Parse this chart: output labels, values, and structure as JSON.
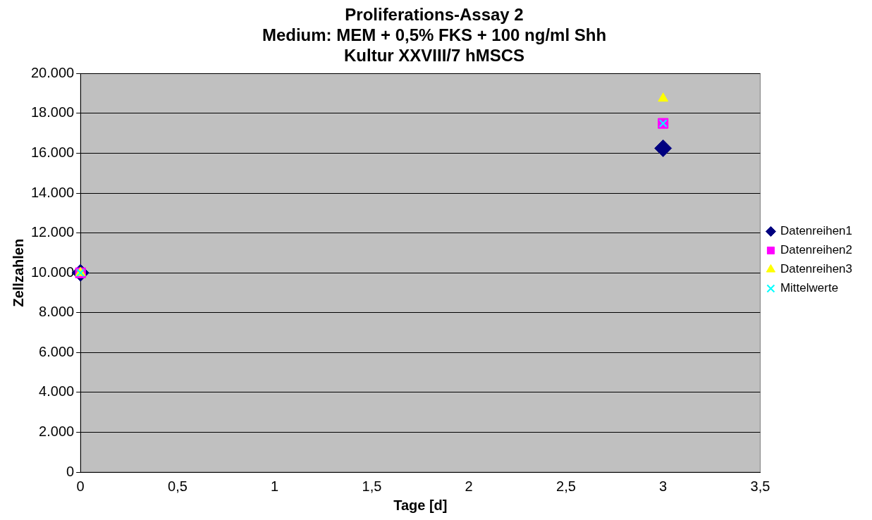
{
  "chart_data": {
    "type": "scatter",
    "title": "Proliferations-Assay 2\nMedium: MEM + 0,5% FKS + 100 ng/ml Shh\nKultur XXVIII/7 hMSCS",
    "xlabel": "Tage [d]",
    "ylabel": "Zellzahlen",
    "x": [
      0,
      3
    ],
    "series": [
      {
        "name": "Datenreihen1",
        "color": "#000080",
        "marker": "diamond",
        "values": [
          10000,
          16250
        ]
      },
      {
        "name": "Datenreihen2",
        "color": "#ff00ff",
        "marker": "square",
        "values": [
          10000,
          17500
        ]
      },
      {
        "name": "Datenreihen3",
        "color": "#ffff00",
        "marker": "triangle",
        "values": [
          10000,
          18750
        ]
      },
      {
        "name": "Mittelwerte",
        "color": "#00ffff",
        "marker": "cross",
        "values": [
          10000,
          17500
        ]
      }
    ],
    "xlim": [
      0,
      3.5
    ],
    "xticks": [
      0,
      {
        "value": 0.5,
        "label": "0,5"
      },
      1,
      {
        "value": 1.5,
        "label": "1,5"
      },
      2,
      {
        "value": 2.5,
        "label": "2,5"
      },
      3,
      {
        "value": 3.5,
        "label": "3,5"
      }
    ],
    "ylim": [
      0,
      20000
    ],
    "yticks": [
      0,
      {
        "value": 2000,
        "label": "2.000"
      },
      {
        "value": 4000,
        "label": "4.000"
      },
      {
        "value": 6000,
        "label": "6.000"
      },
      {
        "value": 8000,
        "label": "8.000"
      },
      {
        "value": 10000,
        "label": "10.000"
      },
      {
        "value": 12000,
        "label": "12.000"
      },
      {
        "value": 14000,
        "label": "14.000"
      },
      {
        "value": 16000,
        "label": "16.000"
      },
      {
        "value": 18000,
        "label": "18.000"
      },
      {
        "value": 20000,
        "label": "20.000"
      }
    ],
    "grid": "y",
    "legend": "right"
  }
}
